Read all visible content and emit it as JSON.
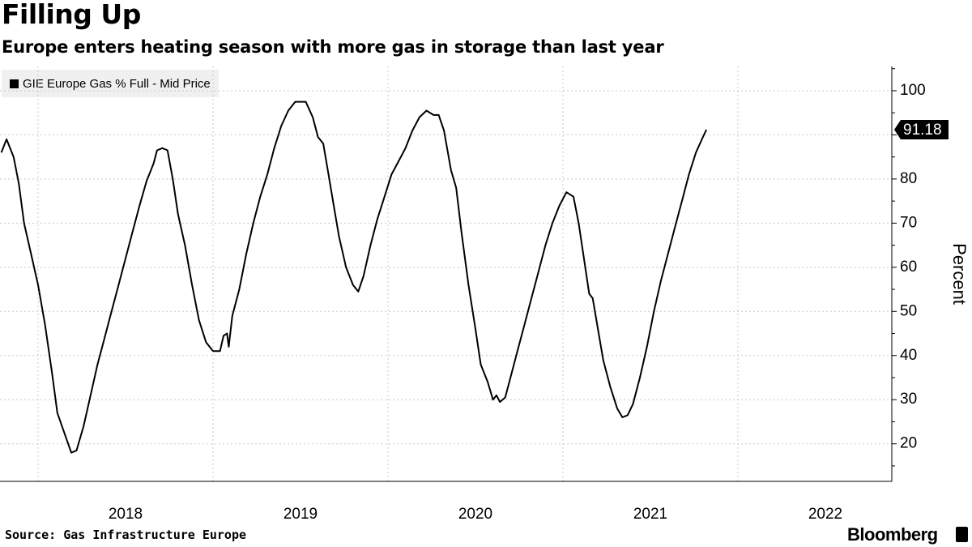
{
  "title": "Filling Up",
  "subtitle": "Europe enters heating season with more gas in storage than last year",
  "source": "Source: Gas Infrastructure Europe",
  "brand": "Bloomberg",
  "brand_mark": "bloomberg-terminal-icon",
  "colors": {
    "line": "#000000",
    "grid": "#c8c8c8",
    "legend_bg": "#f0f0f0",
    "label_bg": "#000000",
    "label_text": "#ffffff"
  },
  "chart_data": {
    "type": "line",
    "title": "Filling Up",
    "subtitle": "Europe enters heating season with more gas in storage than last year",
    "ylabel": "Percent",
    "xlabel": "",
    "ylim": [
      11.5,
      105.5
    ],
    "xlim": [
      2017.0,
      2022.0
    ],
    "yticks": [
      20,
      30,
      40,
      50,
      60,
      70,
      80,
      90,
      100
    ],
    "xticks": [
      {
        "label": "2018",
        "value": 2017.5
      },
      {
        "label": "2019",
        "value": 2018.5
      },
      {
        "label": "2020",
        "value": 2019.5
      },
      {
        "label": "2021",
        "value": 2020.5
      },
      {
        "label": "2022",
        "value": 2021.5
      }
    ],
    "year_boundaries": [
      2017.0,
      2018.0,
      2019.0,
      2020.0,
      2021.0
    ],
    "grid": true,
    "legend": "top-left",
    "last_value_label": "91.18",
    "series": [
      {
        "name": "GIE Europe Gas % Full - Mid Price",
        "points": [
          [
            2016.79,
            86.0
          ],
          [
            2016.82,
            89.0
          ],
          [
            2016.86,
            85.0
          ],
          [
            2016.89,
            79.0
          ],
          [
            2016.92,
            70.0
          ],
          [
            2016.96,
            63.0
          ],
          [
            2017.0,
            56.0
          ],
          [
            2017.04,
            47.0
          ],
          [
            2017.08,
            36.0
          ],
          [
            2017.11,
            27.0
          ],
          [
            2017.15,
            22.5
          ],
          [
            2017.19,
            18.0
          ],
          [
            2017.22,
            18.5
          ],
          [
            2017.26,
            24.0
          ],
          [
            2017.3,
            31.0
          ],
          [
            2017.34,
            38.0
          ],
          [
            2017.38,
            44.0
          ],
          [
            2017.42,
            50.0
          ],
          [
            2017.46,
            56.0
          ],
          [
            2017.5,
            62.0
          ],
          [
            2017.54,
            68.0
          ],
          [
            2017.58,
            74.0
          ],
          [
            2017.62,
            79.5
          ],
          [
            2017.66,
            83.5
          ],
          [
            2017.68,
            86.5
          ],
          [
            2017.71,
            87.0
          ],
          [
            2017.74,
            86.5
          ],
          [
            2017.77,
            80.0
          ],
          [
            2017.8,
            72.0
          ],
          [
            2017.84,
            65.0
          ],
          [
            2017.88,
            56.0
          ],
          [
            2017.92,
            48.0
          ],
          [
            2017.96,
            43.0
          ],
          [
            2018.0,
            41.0
          ],
          [
            2018.04,
            41.0
          ],
          [
            2018.06,
            44.5
          ],
          [
            2018.08,
            45.0
          ],
          [
            2018.09,
            42.0
          ],
          [
            2018.11,
            49.0
          ],
          [
            2018.15,
            55.0
          ],
          [
            2018.19,
            63.0
          ],
          [
            2018.23,
            70.0
          ],
          [
            2018.27,
            76.0
          ],
          [
            2018.31,
            81.0
          ],
          [
            2018.35,
            87.0
          ],
          [
            2018.39,
            92.0
          ],
          [
            2018.43,
            95.5
          ],
          [
            2018.47,
            97.5
          ],
          [
            2018.53,
            97.5
          ],
          [
            2018.57,
            94.0
          ],
          [
            2018.6,
            89.5
          ],
          [
            2018.63,
            88.0
          ],
          [
            2018.66,
            81.0
          ],
          [
            2018.69,
            74.0
          ],
          [
            2018.72,
            67.0
          ],
          [
            2018.76,
            60.0
          ],
          [
            2018.8,
            56.0
          ],
          [
            2018.83,
            54.5
          ],
          [
            2018.86,
            58.0
          ],
          [
            2018.9,
            65.0
          ],
          [
            2018.94,
            71.0
          ],
          [
            2018.98,
            76.0
          ],
          [
            2019.02,
            81.0
          ],
          [
            2019.06,
            84.0
          ],
          [
            2019.1,
            87.0
          ],
          [
            2019.14,
            91.0
          ],
          [
            2019.18,
            94.0
          ],
          [
            2019.22,
            95.5
          ],
          [
            2019.26,
            94.5
          ],
          [
            2019.29,
            94.5
          ],
          [
            2019.32,
            91.0
          ],
          [
            2019.36,
            82.0
          ],
          [
            2019.39,
            78.0
          ],
          [
            2019.42,
            68.0
          ],
          [
            2019.46,
            56.0
          ],
          [
            2019.5,
            46.0
          ],
          [
            2019.53,
            38.0
          ],
          [
            2019.57,
            34.0
          ],
          [
            2019.6,
            30.0
          ],
          [
            2019.62,
            31.0
          ],
          [
            2019.64,
            29.5
          ],
          [
            2019.67,
            30.5
          ],
          [
            2019.7,
            35.0
          ],
          [
            2019.74,
            41.0
          ],
          [
            2019.78,
            47.0
          ],
          [
            2019.82,
            53.0
          ],
          [
            2019.86,
            59.0
          ],
          [
            2019.9,
            65.0
          ],
          [
            2019.94,
            70.0
          ],
          [
            2019.98,
            74.0
          ],
          [
            2020.02,
            77.0
          ],
          [
            2020.06,
            76.0
          ],
          [
            2020.09,
            70.0
          ],
          [
            2020.12,
            62.0
          ],
          [
            2020.15,
            54.0
          ],
          [
            2020.17,
            53.0
          ],
          [
            2020.2,
            46.0
          ],
          [
            2020.23,
            39.0
          ],
          [
            2020.27,
            33.0
          ],
          [
            2020.31,
            28.0
          ],
          [
            2020.34,
            26.0
          ],
          [
            2020.37,
            26.5
          ],
          [
            2020.4,
            29.0
          ],
          [
            2020.44,
            35.0
          ],
          [
            2020.48,
            42.0
          ],
          [
            2020.52,
            50.0
          ],
          [
            2020.56,
            57.0
          ],
          [
            2020.6,
            63.0
          ],
          [
            2020.64,
            69.0
          ],
          [
            2020.68,
            75.0
          ],
          [
            2020.72,
            81.0
          ],
          [
            2020.76,
            86.0
          ],
          [
            2020.8,
            89.5
          ],
          [
            2020.82,
            91.18
          ]
        ]
      }
    ]
  }
}
